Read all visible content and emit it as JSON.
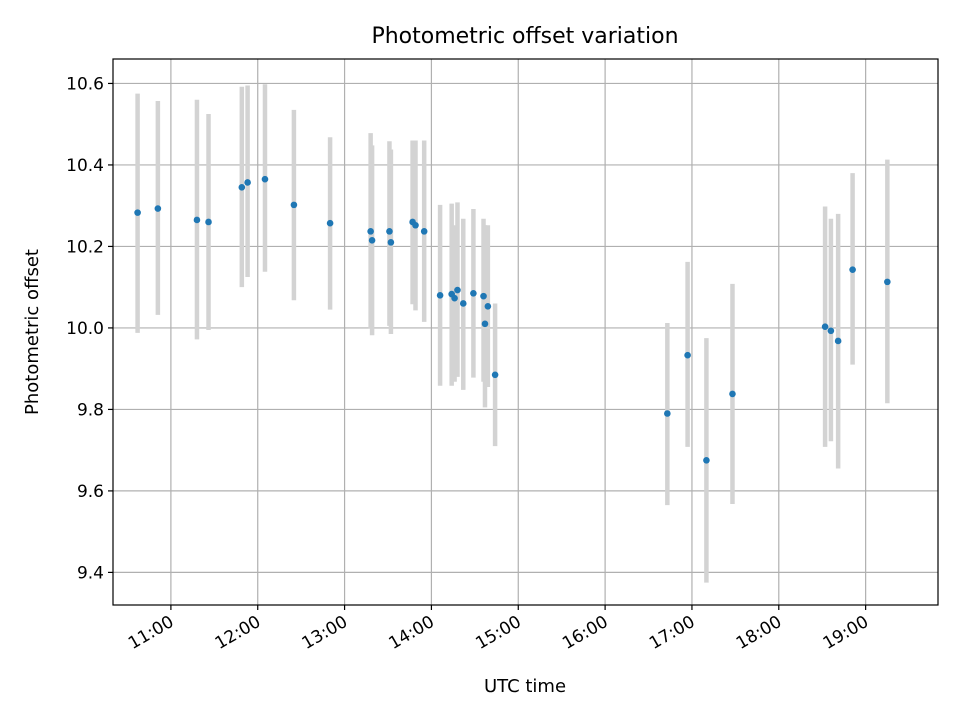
{
  "chart_data": {
    "type": "scatter",
    "title": "Photometric offset variation",
    "xlabel": "UTC time",
    "ylabel": "Photometric offset",
    "grid": true,
    "x_axis": {
      "type": "time",
      "min": "10:20",
      "max": "19:50"
    },
    "ylim": [
      9.32,
      10.66
    ],
    "x_ticks": [
      "11:00",
      "12:00",
      "13:00",
      "14:00",
      "15:00",
      "16:00",
      "17:00",
      "18:00",
      "19:00"
    ],
    "y_ticks": [
      9.4,
      9.6,
      9.8,
      10.0,
      10.2,
      10.4,
      10.6
    ],
    "y_tick_labels": [
      "9.4",
      "9.6",
      "9.8",
      "10.0",
      "10.2",
      "10.4",
      "10.6"
    ],
    "point_color": "#1f77b4",
    "errorbar_color": "#d3d3d3",
    "points": [
      {
        "t": "10:37",
        "y": 10.283,
        "lo": 9.988,
        "hi": 10.575
      },
      {
        "t": "10:51",
        "y": 10.293,
        "lo": 10.032,
        "hi": 10.557
      },
      {
        "t": "11:18",
        "y": 10.265,
        "lo": 9.972,
        "hi": 10.56
      },
      {
        "t": "11:26",
        "y": 10.26,
        "lo": 9.995,
        "hi": 10.525
      },
      {
        "t": "11:49",
        "y": 10.345,
        "lo": 10.1,
        "hi": 10.592
      },
      {
        "t": "11:53",
        "y": 10.357,
        "lo": 10.125,
        "hi": 10.595
      },
      {
        "t": "12:05",
        "y": 10.365,
        "lo": 10.138,
        "hi": 10.598
      },
      {
        "t": "12:25",
        "y": 10.302,
        "lo": 10.068,
        "hi": 10.535
      },
      {
        "t": "12:50",
        "y": 10.257,
        "lo": 10.045,
        "hi": 10.468
      },
      {
        "t": "13:18",
        "y": 10.237,
        "lo": 9.998,
        "hi": 10.478
      },
      {
        "t": "13:19",
        "y": 10.215,
        "lo": 9.982,
        "hi": 10.448
      },
      {
        "t": "13:31",
        "y": 10.237,
        "lo": 10.005,
        "hi": 10.458
      },
      {
        "t": "13:32",
        "y": 10.21,
        "lo": 9.985,
        "hi": 10.438
      },
      {
        "t": "13:47",
        "y": 10.26,
        "lo": 10.058,
        "hi": 10.46
      },
      {
        "t": "13:49",
        "y": 10.252,
        "lo": 10.043,
        "hi": 10.46
      },
      {
        "t": "13:55",
        "y": 10.237,
        "lo": 10.015,
        "hi": 10.46
      },
      {
        "t": "14:06",
        "y": 10.08,
        "lo": 9.858,
        "hi": 10.302
      },
      {
        "t": "14:14",
        "y": 10.083,
        "lo": 9.858,
        "hi": 10.305
      },
      {
        "t": "14:16",
        "y": 10.073,
        "lo": 9.868,
        "hi": 10.252
      },
      {
        "t": "14:18",
        "y": 10.093,
        "lo": 9.88,
        "hi": 10.308
      },
      {
        "t": "14:22",
        "y": 10.06,
        "lo": 9.848,
        "hi": 10.268
      },
      {
        "t": "14:29",
        "y": 10.085,
        "lo": 9.878,
        "hi": 10.292
      },
      {
        "t": "14:36",
        "y": 10.078,
        "lo": 9.868,
        "hi": 10.268
      },
      {
        "t": "14:37",
        "y": 10.01,
        "lo": 9.805,
        "hi": 10.252
      },
      {
        "t": "14:39",
        "y": 10.053,
        "lo": 9.855,
        "hi": 10.252
      },
      {
        "t": "14:44",
        "y": 9.885,
        "lo": 9.71,
        "hi": 10.06
      },
      {
        "t": "16:43",
        "y": 9.79,
        "lo": 9.565,
        "hi": 10.012
      },
      {
        "t": "16:57",
        "y": 9.933,
        "lo": 9.708,
        "hi": 10.162
      },
      {
        "t": "17:10",
        "y": 9.675,
        "lo": 9.375,
        "hi": 9.975
      },
      {
        "t": "17:28",
        "y": 9.838,
        "lo": 9.568,
        "hi": 10.108
      },
      {
        "t": "18:32",
        "y": 10.003,
        "lo": 9.708,
        "hi": 10.298
      },
      {
        "t": "18:36",
        "y": 9.993,
        "lo": 9.722,
        "hi": 10.268
      },
      {
        "t": "18:41",
        "y": 9.968,
        "lo": 9.655,
        "hi": 10.28
      },
      {
        "t": "18:51",
        "y": 10.143,
        "lo": 9.91,
        "hi": 10.38
      },
      {
        "t": "19:15",
        "y": 10.113,
        "lo": 9.815,
        "hi": 10.413
      }
    ]
  }
}
